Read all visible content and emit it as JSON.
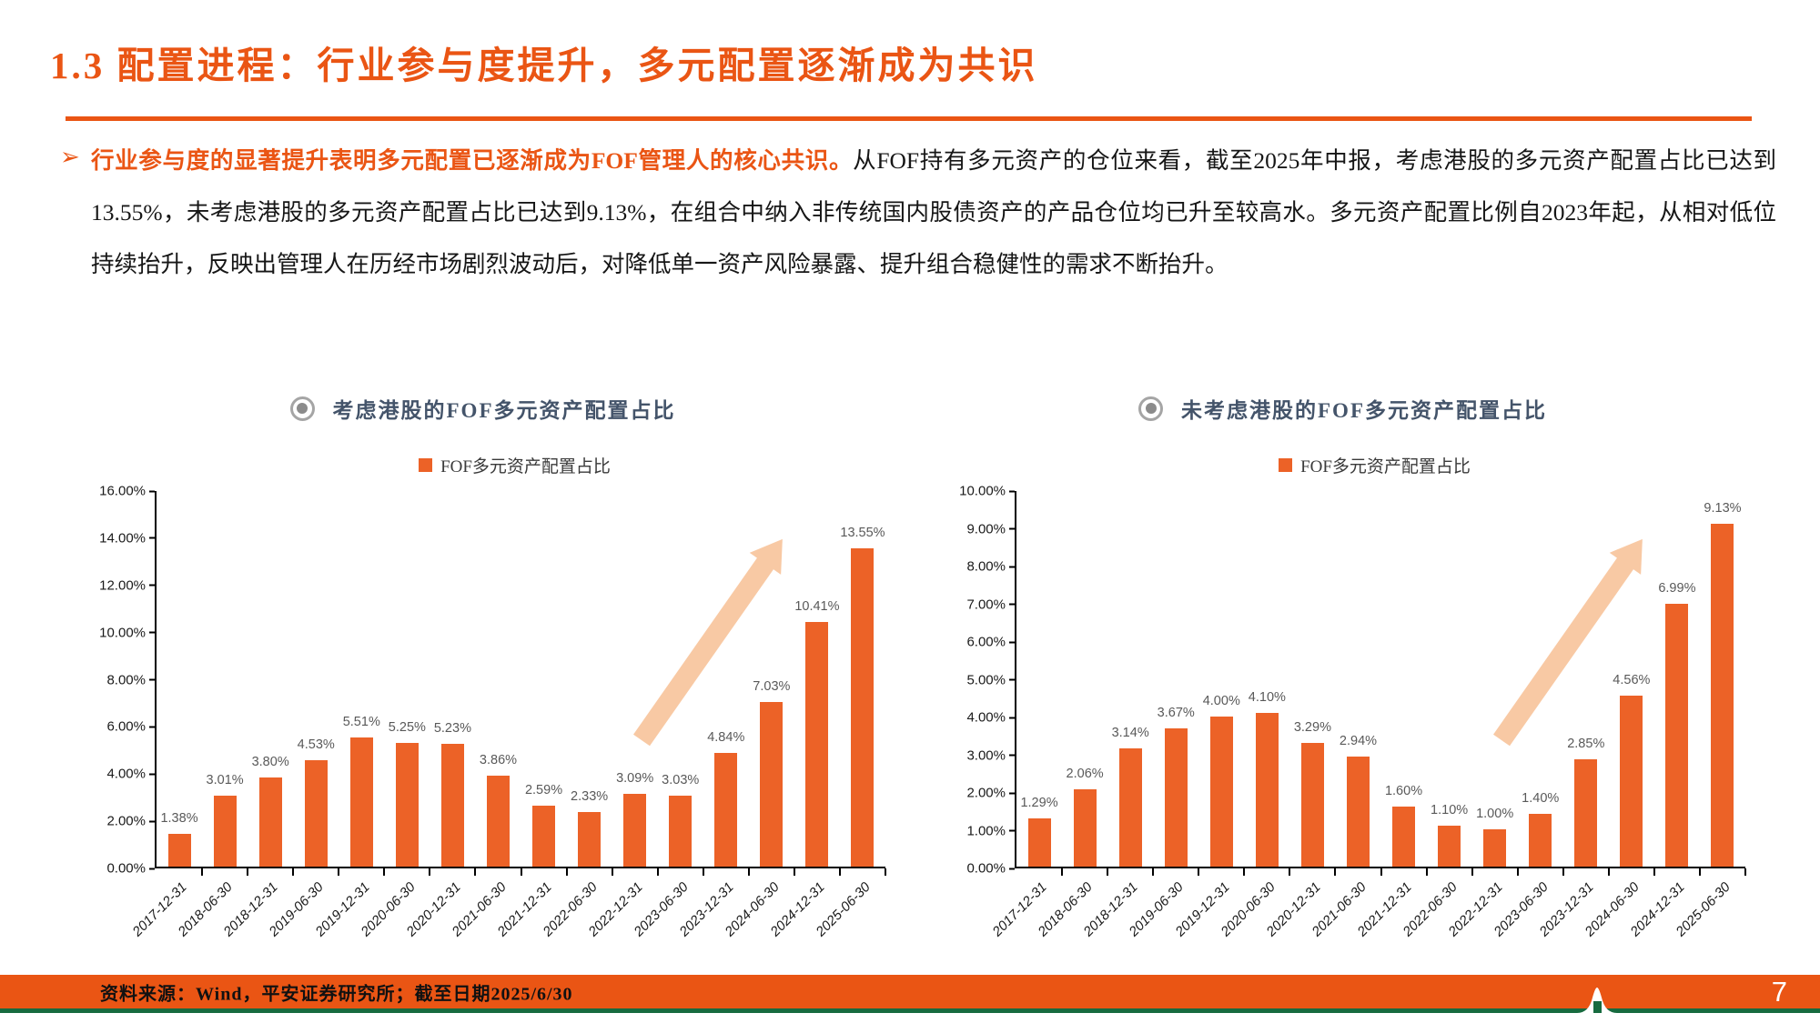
{
  "slide": {
    "title": "1.3 配置进程：行业参与度提升，多元配置逐渐成为共识",
    "bullet_marker": "➢",
    "paragraph_highlight": "行业参与度的显著提升表明多元配置已逐渐成为FOF管理人的核心共识。",
    "paragraph_body": "从FOF持有多元资产的仓位来看，截至2025年中报，考虑港股的多元资产配置占比已达到13.55%，未考虑港股的多元资产配置占比已达到9.13%，在组合中纳入非传统国内股债资产的产品仓位均已升至较高水。多元资产配置比例自2023年起，从相对低位持续抬升，反映出管理人在历经市场剧烈波动后，对降低单一资产风险暴露、提升组合稳健性的需求不断抬升。"
  },
  "icons": {
    "chart_header_icon": "bullseye-icon",
    "trend_arrow": "up-right-arrow"
  },
  "colors": {
    "accent_orange": "#EA5514",
    "bar_orange": "#EC6227",
    "arrow_peach": "#F8C9A4",
    "header_navy": "#44546A",
    "footer_green": "#176B3F"
  },
  "chart_data": [
    {
      "type": "bar",
      "title": "考虑港股的FOF多元资产配置占比",
      "legend": "FOF多元资产配置占比",
      "legend_position": "top",
      "grid": false,
      "ylim": [
        0,
        16
      ],
      "ytick_step": 2,
      "yticks": [
        "16.00%",
        "14.00%",
        "12.00%",
        "10.00%",
        "8.00%",
        "6.00%",
        "4.00%",
        "2.00%",
        "0.00%"
      ],
      "categories": [
        "2017-12-31",
        "2018-06-30",
        "2018-12-31",
        "2019-06-30",
        "2019-12-31",
        "2020-06-30",
        "2020-12-31",
        "2021-06-30",
        "2021-12-31",
        "2022-06-30",
        "2022-12-31",
        "2023-06-30",
        "2023-12-31",
        "2024-06-30",
        "2024-12-31",
        "2025-06-30"
      ],
      "values": [
        1.38,
        3.01,
        3.8,
        4.53,
        5.51,
        5.25,
        5.23,
        3.86,
        2.59,
        2.33,
        3.09,
        3.03,
        4.84,
        7.03,
        10.41,
        13.55
      ],
      "labels": [
        "1.38%",
        "3.01%",
        "3.80%",
        "4.53%",
        "5.51%",
        "5.25%",
        "5.23%",
        "3.86%",
        "2.59%",
        "2.33%",
        "3.09%",
        "3.03%",
        "4.84%",
        "7.03%",
        "10.41%",
        "13.55%"
      ],
      "annotation": "upward trend arrow"
    },
    {
      "type": "bar",
      "title": "未考虑港股的FOF多元资产配置占比",
      "legend": "FOF多元资产配置占比",
      "legend_position": "top",
      "grid": false,
      "ylim": [
        0,
        10
      ],
      "ytick_step": 1,
      "yticks": [
        "10.00%",
        "9.00%",
        "8.00%",
        "7.00%",
        "6.00%",
        "5.00%",
        "4.00%",
        "3.00%",
        "2.00%",
        "1.00%",
        "0.00%"
      ],
      "categories": [
        "2017-12-31",
        "2018-06-30",
        "2018-12-31",
        "2019-06-30",
        "2019-12-31",
        "2020-06-30",
        "2020-12-31",
        "2021-06-30",
        "2021-12-31",
        "2022-06-30",
        "2022-12-31",
        "2023-06-30",
        "2023-12-31",
        "2024-06-30",
        "2024-12-31",
        "2025-06-30"
      ],
      "values": [
        1.29,
        2.06,
        3.14,
        3.67,
        4.0,
        4.1,
        3.29,
        2.94,
        1.6,
        1.1,
        1.0,
        1.4,
        2.85,
        4.56,
        6.99,
        9.13
      ],
      "labels": [
        "1.29%",
        "2.06%",
        "3.14%",
        "3.67%",
        "4.00%",
        "4.10%",
        "3.29%",
        "2.94%",
        "1.60%",
        "1.10%",
        "1.00%",
        "1.40%",
        "2.85%",
        "4.56%",
        "6.99%",
        "9.13%"
      ],
      "annotation": "upward trend arrow"
    }
  ],
  "footer": {
    "source": "资料来源：Wind，平安证券研究所；截至日期2025/6/30",
    "page_number": "7"
  }
}
